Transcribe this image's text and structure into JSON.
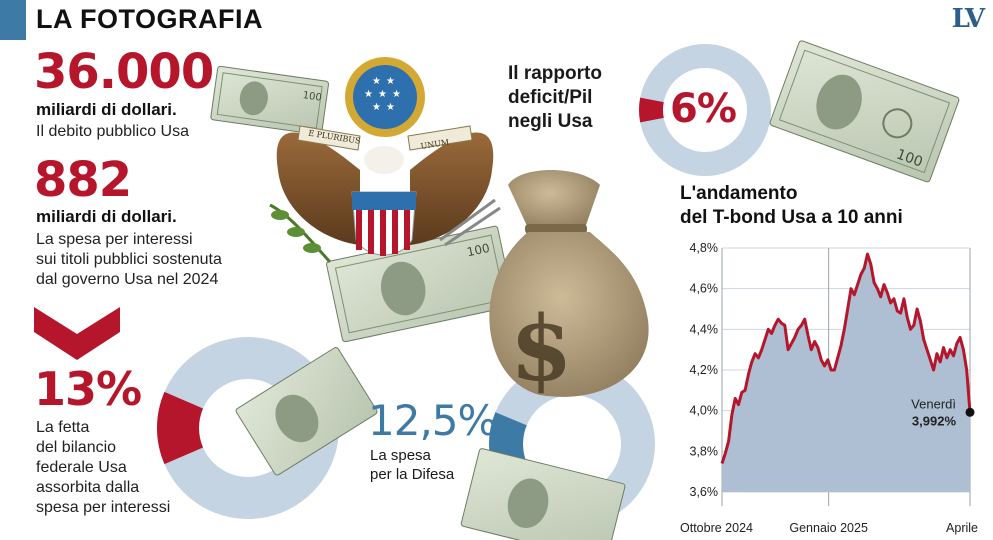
{
  "header": {
    "title": "LA FOTOGRAFIA",
    "logo": "LV"
  },
  "stats": {
    "debt": {
      "value": "36.000",
      "unit": "miliardi di dollari.",
      "desc": "Il debito pubblico Usa"
    },
    "interest": {
      "value": "882",
      "unit": "miliardi di dollari.",
      "desc": [
        "La spesa per interessi",
        "sui titoli pubblici sostenuta",
        "dal governo Usa nel 2024"
      ]
    },
    "budget_share": {
      "value": "13%",
      "percent": 13,
      "desc": [
        "La fetta",
        "del bilancio",
        "federale Usa",
        "assorbita dalla",
        "spesa per interessi"
      ]
    },
    "defense": {
      "value": "12,5%",
      "percent": 12.5,
      "desc": [
        "La spesa",
        "per la Difesa"
      ]
    },
    "deficit": {
      "value": "6%",
      "percent": 6,
      "label": [
        "Il rapporto",
        "deficit/Pil",
        "negli Usa"
      ]
    }
  },
  "seal": {
    "motto_left": "E PLURIBUS",
    "motto_right": "UNUM"
  },
  "colors": {
    "red": "#b5162b",
    "blue": "#3d7aa6",
    "light_blue": "#b9cad9",
    "ring": "#c5d4e2",
    "area": "#aebfd3"
  },
  "chart_data": {
    "type": "area",
    "title": [
      "L'andamento",
      "del T-bond Usa a 10 anni"
    ],
    "x_labels": [
      "Ottobre 2024",
      "Gennaio 2025",
      "Aprile"
    ],
    "x_range": [
      "2024-09-30",
      "2025-04-07"
    ],
    "y_ticks": [
      "4,8%",
      "4,6%",
      "4,4%",
      "4,2%",
      "4,0%",
      "3,8%",
      "3,6%"
    ],
    "ylim": [
      3.6,
      4.8
    ],
    "annotation": {
      "label": "Venerdì",
      "value": "3,992%",
      "y": 3.992
    },
    "series": [
      {
        "values": [
          3.74,
          3.79,
          3.85,
          3.98,
          4.06,
          4.03,
          4.09,
          4.1,
          4.18,
          4.24,
          4.28,
          4.26,
          4.3,
          4.35,
          4.4,
          4.38,
          4.42,
          4.45,
          4.43,
          4.42,
          4.3,
          4.33,
          4.36,
          4.4,
          4.42,
          4.45,
          4.37,
          4.3,
          4.34,
          4.31,
          4.25,
          4.22,
          4.25,
          4.2,
          4.2,
          4.26,
          4.32,
          4.4,
          4.5,
          4.6,
          4.57,
          4.62,
          4.67,
          4.7,
          4.77,
          4.72,
          4.63,
          4.6,
          4.56,
          4.62,
          4.58,
          4.53,
          4.55,
          4.49,
          4.48,
          4.55,
          4.46,
          4.4,
          4.42,
          4.5,
          4.44,
          4.35,
          4.3,
          4.25,
          4.2,
          4.28,
          4.24,
          4.31,
          4.26,
          4.3,
          4.27,
          4.33,
          4.36,
          4.3,
          4.2,
          3.992
        ]
      }
    ]
  }
}
